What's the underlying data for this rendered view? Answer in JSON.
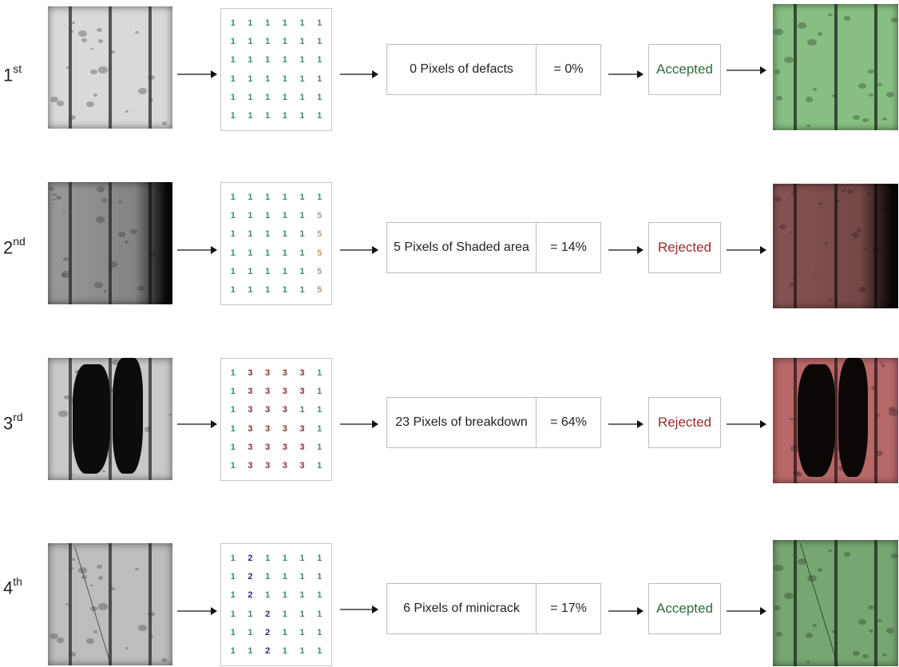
{
  "rows": [
    {
      "ordinal": {
        "num": "1",
        "suffix": "st"
      },
      "grid": [
        [
          1,
          1,
          1,
          1,
          1,
          1
        ],
        [
          1,
          1,
          1,
          1,
          1,
          1
        ],
        [
          1,
          1,
          1,
          1,
          1,
          1
        ],
        [
          1,
          1,
          1,
          1,
          1,
          1
        ],
        [
          1,
          1,
          1,
          1,
          1,
          1
        ],
        [
          1,
          1,
          1,
          1,
          1,
          1
        ]
      ],
      "description": "0 Pixels of  defacts",
      "percentage": "= 0%",
      "verdict": "Accepted",
      "verdict_color": "#2f6b3e",
      "result_tint": "rgba(80,200,70,0.55)",
      "cell_shade": "#d9d9d9"
    },
    {
      "ordinal": {
        "num": "2",
        "suffix": "nd"
      },
      "grid": [
        [
          1,
          1,
          1,
          1,
          1,
          1
        ],
        [
          1,
          1,
          1,
          1,
          1,
          5
        ],
        [
          1,
          1,
          1,
          1,
          1,
          5
        ],
        [
          1,
          1,
          1,
          1,
          1,
          5
        ],
        [
          1,
          1,
          1,
          1,
          1,
          5
        ],
        [
          1,
          1,
          1,
          1,
          1,
          5
        ]
      ],
      "description": "5 Pixels of Shaded area",
      "percentage": "= 14%",
      "verdict": "Rejected",
      "verdict_color": "#9b2b2b",
      "result_tint": "rgba(200,40,40,0.55)",
      "cell_shade": "#9a9a9a"
    },
    {
      "ordinal": {
        "num": "3",
        "suffix": "rd"
      },
      "grid": [
        [
          1,
          3,
          3,
          3,
          3,
          1
        ],
        [
          1,
          3,
          3,
          3,
          3,
          1
        ],
        [
          1,
          3,
          3,
          3,
          1,
          1
        ],
        [
          1,
          3,
          3,
          3,
          3,
          1
        ],
        [
          1,
          3,
          3,
          3,
          3,
          1
        ],
        [
          1,
          3,
          3,
          3,
          3,
          1
        ]
      ],
      "description": "23 Pixels of breakdown",
      "percentage": "= 64%",
      "verdict": "Rejected",
      "verdict_color": "#9b2b2b",
      "result_tint": "rgba(220,50,50,0.6)",
      "cell_shade": "#c9c9c9"
    },
    {
      "ordinal": {
        "num": "4",
        "suffix": "th"
      },
      "grid": [
        [
          1,
          2,
          1,
          1,
          1,
          1
        ],
        [
          1,
          2,
          1,
          1,
          1,
          1
        ],
        [
          1,
          2,
          1,
          1,
          1,
          1
        ],
        [
          1,
          1,
          2,
          1,
          1,
          1
        ],
        [
          1,
          1,
          2,
          1,
          1,
          1
        ],
        [
          1,
          1,
          2,
          1,
          1,
          1
        ]
      ],
      "description": "6 Pixels of  minicrack",
      "percentage": "= 17%",
      "verdict": "Accepted",
      "verdict_color": "#2f6b3e",
      "result_tint": "rgba(80,200,70,0.55)",
      "cell_shade": "#bdbdbd"
    }
  ]
}
